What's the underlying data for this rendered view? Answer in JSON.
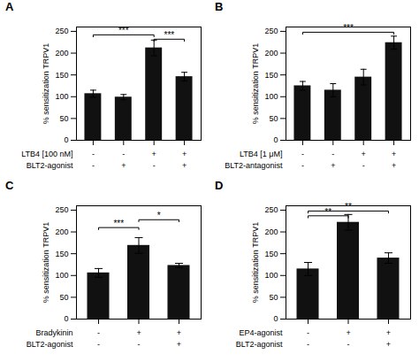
{
  "chart_data": [
    {
      "type": "bar",
      "title": "A",
      "categories": [
        null,
        null,
        null,
        null
      ],
      "values": [
        107,
        99,
        212,
        146
      ],
      "errors": [
        8,
        6,
        18,
        10
      ],
      "color": "#111111",
      "ylabel": "% sensitization TRPV1",
      "ylim": [
        0,
        260
      ],
      "yticks": [
        0,
        50,
        100,
        150,
        200,
        250
      ],
      "tick_labels": "y",
      "rows": [
        {
          "name": "LTB4 [100 nM]",
          "labels": [
            "-",
            "-",
            "+",
            "+"
          ]
        },
        {
          "name": "BLT2-agonist",
          "labels": [
            "-",
            "+",
            "-",
            "+"
          ]
        }
      ],
      "significance": [
        {
          "x1": 0,
          "x2": 2,
          "y": 242,
          "label": "***"
        },
        {
          "x1": 2,
          "x2": 3,
          "y": 232,
          "label": "***"
        }
      ]
    },
    {
      "type": "bar",
      "title": "B",
      "categories": [
        null,
        null,
        null,
        null
      ],
      "values": [
        125,
        115,
        145,
        224
      ],
      "errors": [
        10,
        15,
        18,
        15
      ],
      "color": "#111111",
      "ylabel": "% sensitization TRPV1",
      "ylim": [
        0,
        260
      ],
      "yticks": [
        0,
        50,
        100,
        150,
        200,
        250
      ],
      "tick_labels": "y",
      "rows": [
        {
          "name": "LTB4 [1 μM]",
          "labels": [
            "-",
            "-",
            "+",
            "+"
          ]
        },
        {
          "name": "BLT2-antagonist",
          "labels": [
            "-",
            "+",
            "-",
            "+"
          ]
        }
      ],
      "significance": [
        {
          "x1": 0,
          "x2": 3,
          "y": 248,
          "label": "***"
        }
      ]
    },
    {
      "type": "bar",
      "title": "C",
      "categories": [
        null,
        null,
        null
      ],
      "values": [
        106,
        169,
        123
      ],
      "errors": [
        10,
        18,
        5
      ],
      "color": "#111111",
      "ylabel": "% sensitization TRPV1",
      "ylim": [
        0,
        260
      ],
      "yticks": [
        0,
        50,
        100,
        150,
        200,
        250
      ],
      "tick_labels": "y",
      "rows": [
        {
          "name": "Bradykinin",
          "labels": [
            "-",
            "+",
            "+"
          ]
        },
        {
          "name": "BLT2-agonist",
          "labels": [
            "-",
            "-",
            "+"
          ]
        }
      ],
      "significance": [
        {
          "x1": 0,
          "x2": 1,
          "y": 210,
          "label": "***"
        },
        {
          "x1": 1,
          "x2": 2,
          "y": 228,
          "label": "*"
        }
      ]
    },
    {
      "type": "bar",
      "title": "D",
      "categories": [
        null,
        null,
        null
      ],
      "values": [
        115,
        222,
        140
      ],
      "errors": [
        15,
        18,
        12
      ],
      "color": "#111111",
      "ylabel": "% sensitization TRPV1",
      "ylim": [
        0,
        260
      ],
      "yticks": [
        0,
        50,
        100,
        150,
        200,
        250
      ],
      "tick_labels": "y",
      "rows": [
        {
          "name": "EP4-agonist",
          "labels": [
            "-",
            "+",
            "+"
          ]
        },
        {
          "name": "BLT2-agonist",
          "labels": [
            "-",
            "-",
            "+"
          ]
        }
      ],
      "significance": [
        {
          "x1": 0,
          "x2": 2,
          "y": 248,
          "label": "**"
        },
        {
          "x1": 0,
          "x2": 1,
          "y": 237,
          "label": "**"
        }
      ]
    }
  ]
}
